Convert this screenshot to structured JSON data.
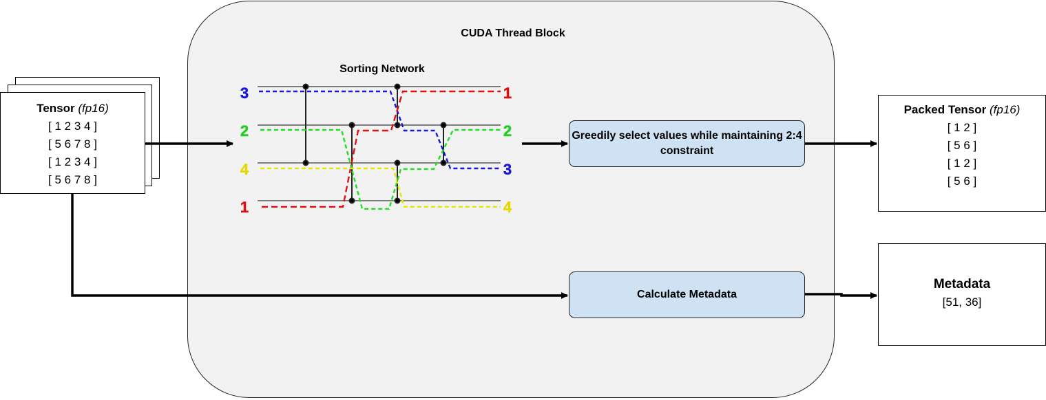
{
  "thread_block": {
    "title": "CUDA Thread Block"
  },
  "sorting_network": {
    "title": "Sorting Network",
    "inputs": [
      "3",
      "2",
      "4",
      "1"
    ],
    "outputs": [
      "1",
      "2",
      "3",
      "4"
    ],
    "colors": {
      "3": "#1a1ad6",
      "2": "#22dd22",
      "4": "#e6dc00",
      "1": "#dd1111"
    }
  },
  "input_tensor": {
    "title": "Tensor",
    "dtype": "(fp16)",
    "rows": [
      "[ 1 2 3 4 ]",
      "[ 5 6 7 8 ]",
      "[ 1 2 3 4 ]",
      "[ 5 6 7 8 ]"
    ]
  },
  "select_step": {
    "label": "Greedily select values while maintaining 2:4 constraint"
  },
  "metadata_step": {
    "label": "Calculate Metadata"
  },
  "packed_tensor": {
    "title": "Packed Tensor",
    "dtype": "(fp16)",
    "rows": [
      "[ 1 2 ]",
      "[ 5 6 ]",
      "[ 1 2 ]",
      "[ 5 6 ]"
    ]
  },
  "metadata": {
    "title": "Metadata",
    "value": "[51, 36]"
  },
  "colors": {
    "step_fill": "#cfe2f3",
    "block_fill": "#f2f2f2"
  }
}
